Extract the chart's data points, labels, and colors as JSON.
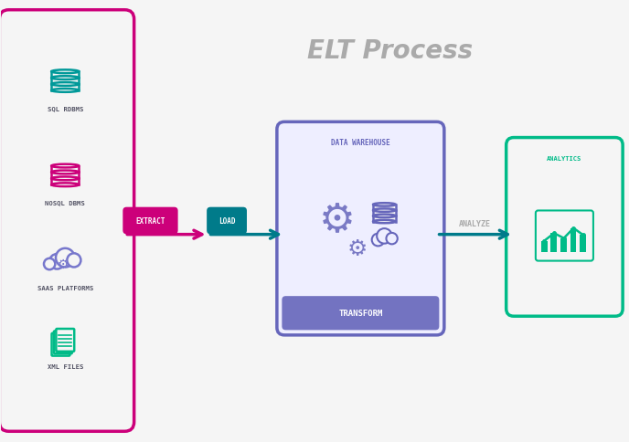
{
  "title": "ELT Process",
  "title_color": "#aaaaaa",
  "title_fontsize": 20,
  "bg_color": "#f5f5f5",
  "sources": [
    "SQL RDBMS",
    "NOSQL DBMS",
    "SAAS PLATFORMS",
    "XML FILES"
  ],
  "source_colors": [
    "#009999",
    "#cc007a",
    "#7777cc",
    "#00bb88"
  ],
  "source_box_color": "#cc007a",
  "extract_label": "EXTRACT",
  "extract_bg": "#cc007a",
  "extract_fg": "#ffffff",
  "load_label": "LOAD",
  "load_bg": "#007b8a",
  "load_fg": "#ffffff",
  "arrow1_color": "#cc007a",
  "arrow2_color": "#007b8a",
  "arrow3_color": "#007b8a",
  "dw_box_color": "#6666bb",
  "dw_box_fill": "#7777cc22",
  "dw_label_top": "DATA WAREHOUSE",
  "dw_label_bottom": "TRANSFORM",
  "dw_icon_color": "#6666bb",
  "analytics_box_color": "#00bb88",
  "analytics_label_top": "ANALYTICS",
  "analyze_label": "ANALYZE",
  "analyze_color": "#aaaaaa",
  "label_color": "#555566"
}
